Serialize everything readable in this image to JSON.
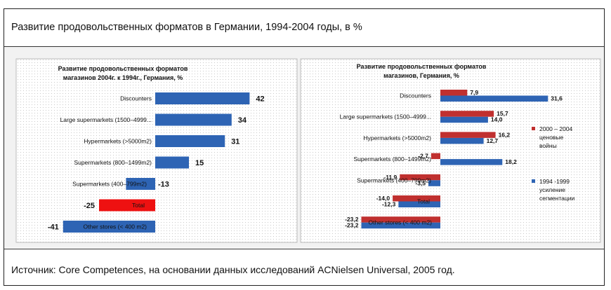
{
  "header": {
    "title": "Развитие продовольственных форматов в Германии, 1994-2004 годы, в %"
  },
  "footer": {
    "source": "Источник: Core Competences, на основании данных исследований ACNielsen Universal, 2005 год."
  },
  "colors": {
    "blue": "#2e64b4",
    "red_total": "#ee1111",
    "dark_red": "#c0302f",
    "text": "#111111",
    "panel_bg": "#f2f2f2"
  },
  "chart_data": [
    {
      "type": "bar",
      "orientation": "horizontal",
      "title_line1": "Развитие продовольственных  форматов",
      "title_line2": "магазинов 2004г. к 1994г., Германия, %",
      "categories": [
        "Discounters",
        "Large supermarkets (1500–4999...",
        "Hypermarkets (>5000m2)",
        "Supermarkets (800–1499m2)",
        "Supermarkets (400–799m2)",
        "Total",
        "Other stores (< 400 m2)"
      ],
      "values": [
        42,
        34,
        31,
        15,
        -13,
        -25,
        -41
      ],
      "value_labels": [
        "42",
        "34",
        "31",
        "15",
        "-13",
        "-25",
        "-41"
      ],
      "highlight_index": 5
    },
    {
      "type": "bar",
      "orientation": "horizontal",
      "title_line1": "Развитие продовольственных форматов",
      "title_line2": "магазинов, Германия, %",
      "categories": [
        "Discounters",
        "Large supermarkets (1500–4999...",
        "Hypermarkets (>5000m2)",
        "Supermarkets (800–1499m2)",
        "Supermarkets (400–799m2)",
        "Total",
        "Other stores (< 400 m2)"
      ],
      "series": [
        {
          "name": "2000 – 2004",
          "legend_lines": [
            "2000 – 2004",
            "ценовые",
            "войны"
          ],
          "values": [
            7.9,
            15.7,
            16.2,
            -2.7,
            -11.9,
            -14.0,
            -23.2
          ],
          "labels": [
            "7,9",
            "15,7",
            "16,2",
            "-2,7",
            "-11,9",
            "-14,0",
            "-23,2"
          ]
        },
        {
          "name": "1994 -1999",
          "legend_lines": [
            "1994 -1999",
            "усиление",
            "сегментации"
          ],
          "values": [
            31.6,
            14.0,
            12.7,
            18.2,
            -3.5,
            -12.3,
            -23.2
          ],
          "labels": [
            "31,6",
            "14,0",
            "12,7",
            "18,2",
            "-3,5",
            "-12,3",
            "-23,2"
          ]
        }
      ]
    }
  ]
}
